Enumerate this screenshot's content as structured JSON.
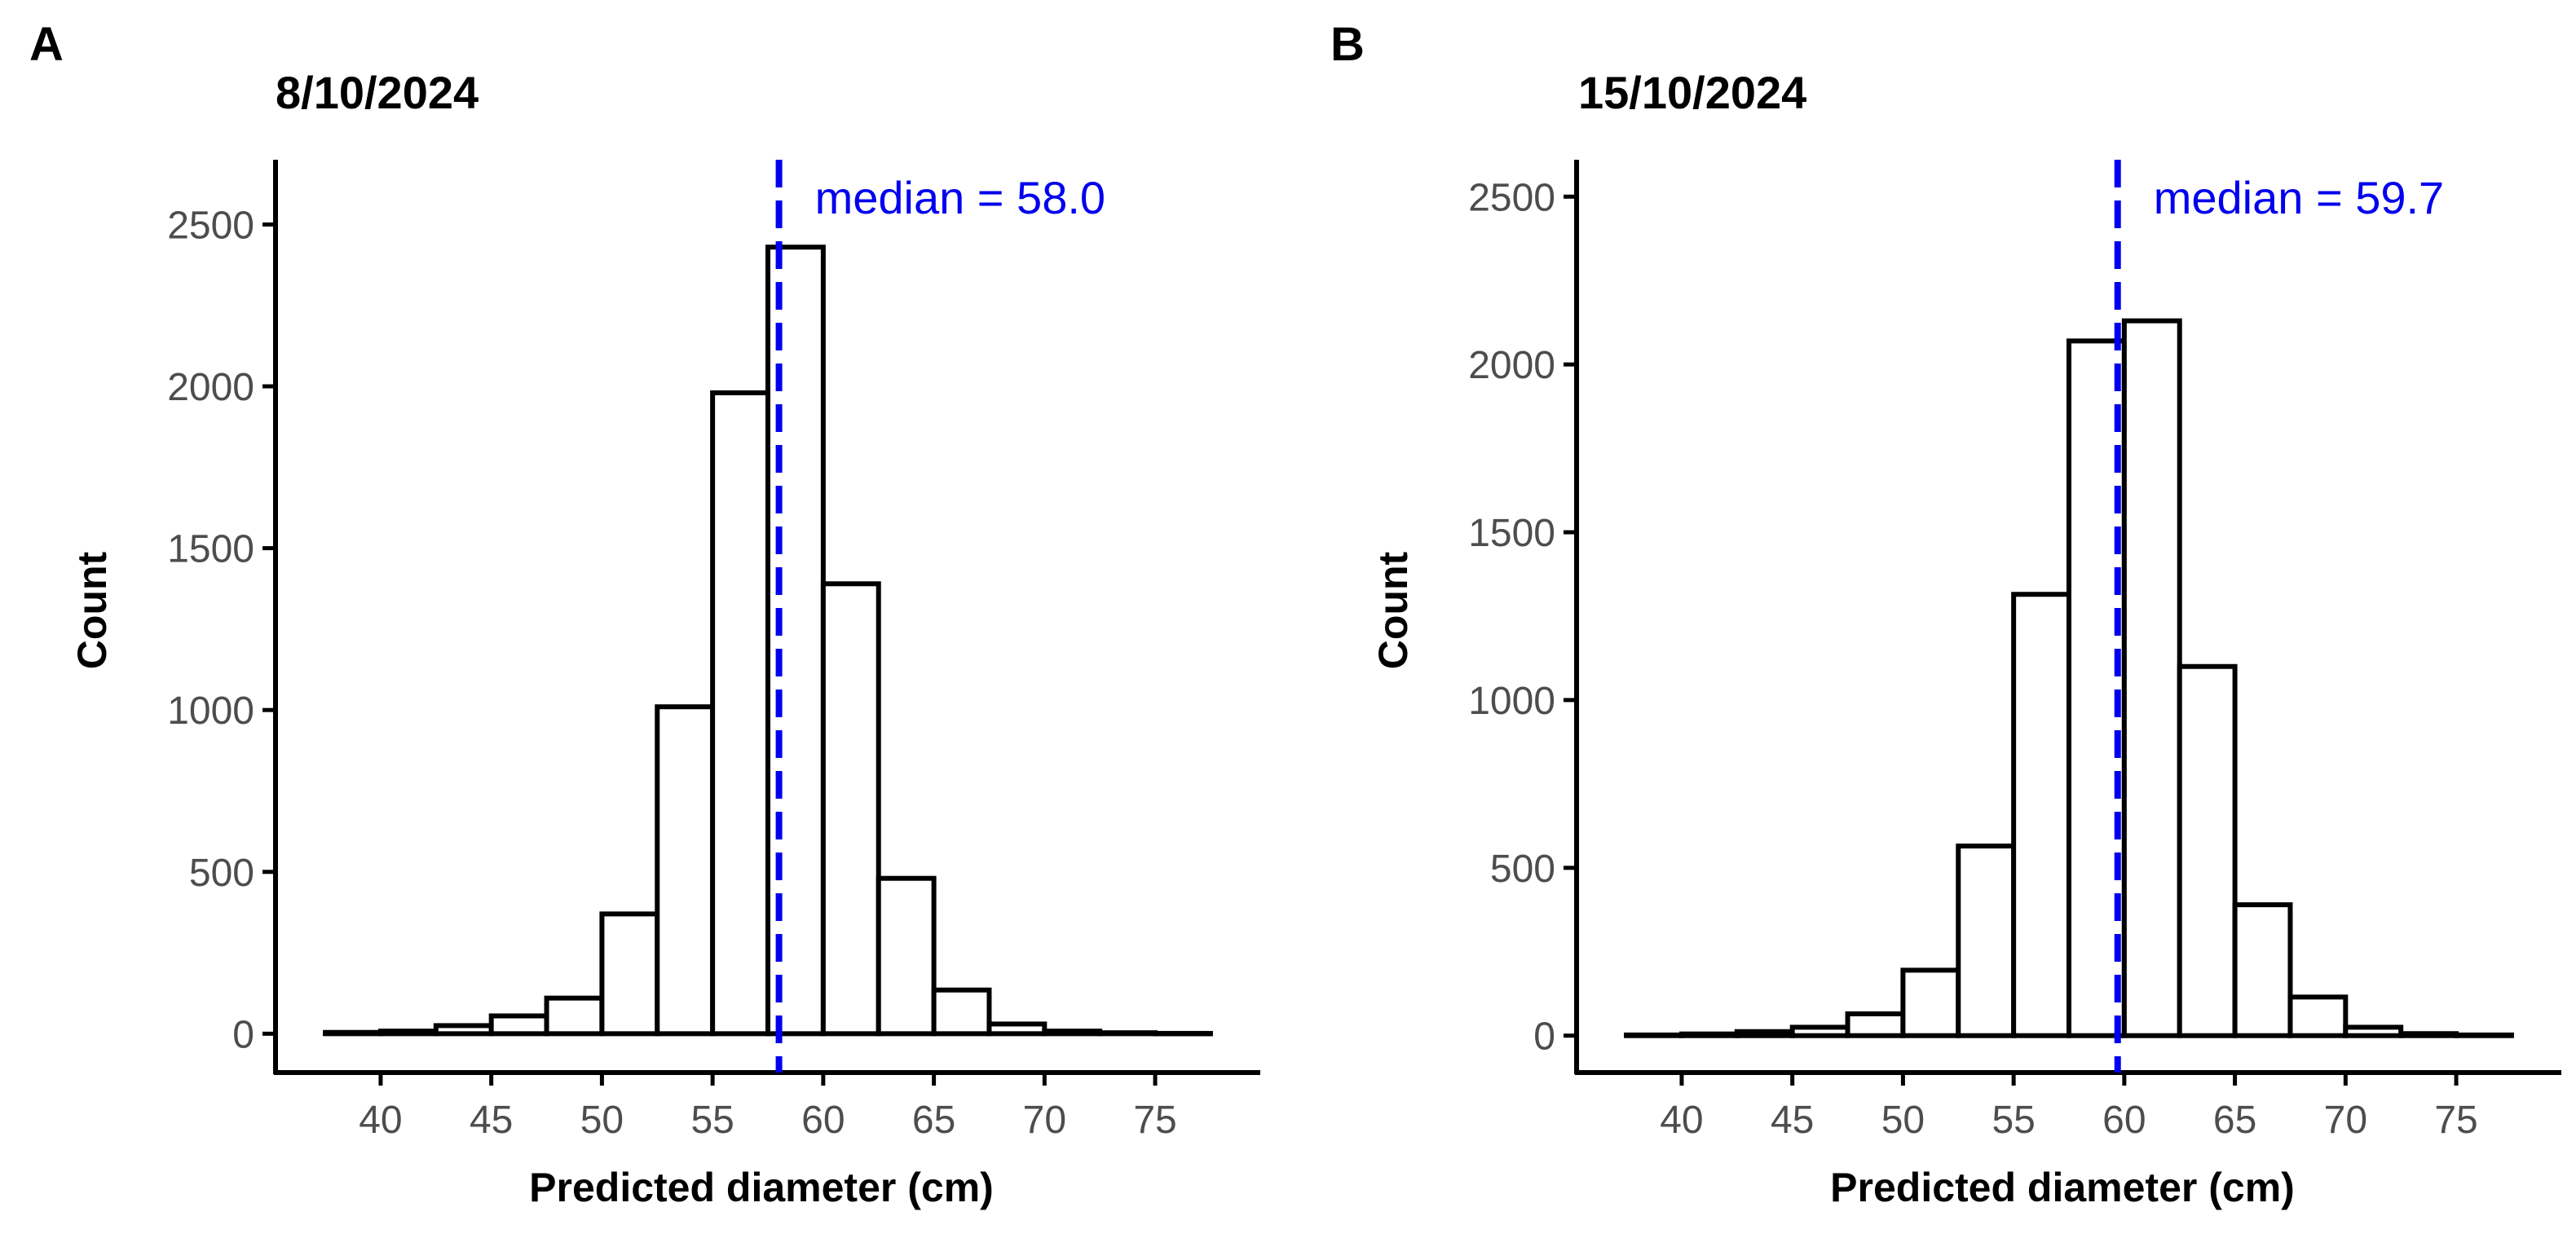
{
  "figure": {
    "background": "#ffffff",
    "bar_fill": "#ffffff",
    "bar_stroke": "#000000",
    "axis_color": "#000000",
    "median_color": "#0000ee"
  },
  "chart_data": [
    {
      "type": "bar",
      "panel_label": "A",
      "title": "8/10/2024",
      "xlabel": "Predicted diameter (cm)",
      "ylabel": "Count",
      "bin_width": 2.5,
      "bin_starts": [
        37.5,
        40,
        42.5,
        45,
        47.5,
        50,
        52.5,
        55,
        57.5,
        60,
        62.5,
        65,
        67.5,
        70,
        72.5,
        75
      ],
      "values": [
        4,
        8,
        25,
        55,
        110,
        370,
        1010,
        1980,
        2430,
        1390,
        480,
        135,
        30,
        8,
        3,
        1
      ],
      "xlim": [
        35.25,
        79.75
      ],
      "ylim": [
        -120,
        2700
      ],
      "xticks": [
        40,
        45,
        50,
        55,
        60,
        65,
        70,
        75
      ],
      "xtick_labels": [
        "40",
        "45",
        "50",
        "55",
        "60",
        "65",
        "70",
        "75"
      ],
      "yticks": [
        0,
        500,
        1000,
        1500,
        2000,
        2500
      ],
      "ytick_labels": [
        "0",
        "500",
        "1000",
        "1500",
        "2000",
        "2500"
      ],
      "median": 58.0,
      "median_label": "median = 58.0"
    },
    {
      "type": "bar",
      "panel_label": "B",
      "title": "15/10/2024",
      "xlabel": "Predicted diameter (cm)",
      "ylabel": "Count",
      "bin_width": 2.5,
      "bin_starts": [
        37.5,
        40,
        42.5,
        45,
        47.5,
        50,
        52.5,
        55,
        57.5,
        60,
        62.5,
        65,
        67.5,
        70,
        72.5,
        75
      ],
      "values": [
        2,
        5,
        12,
        25,
        65,
        195,
        565,
        1315,
        2070,
        2130,
        1100,
        390,
        115,
        25,
        6,
        2
      ],
      "xlim": [
        35.25,
        79.75
      ],
      "ylim": [
        -110,
        2610
      ],
      "xticks": [
        40,
        45,
        50,
        55,
        60,
        65,
        70,
        75
      ],
      "xtick_labels": [
        "40",
        "45",
        "50",
        "55",
        "60",
        "65",
        "70",
        "75"
      ],
      "yticks": [
        0,
        500,
        1000,
        1500,
        2000,
        2500
      ],
      "ytick_labels": [
        "0",
        "500",
        "1000",
        "1500",
        "2000",
        "2500"
      ],
      "median": 59.7,
      "median_label": "median = 59.7"
    }
  ]
}
